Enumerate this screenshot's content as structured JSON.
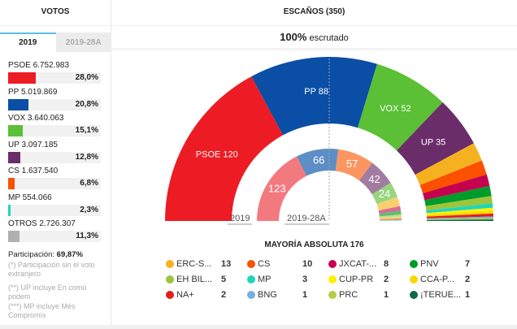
{
  "votos": {
    "title": "VOTOS",
    "tabs": [
      "2019",
      "2019-28A"
    ],
    "rows": [
      {
        "label": "PSOE 6.752.983",
        "pct": "28,0%",
        "value": 28.0,
        "color": "#ed1c24"
      },
      {
        "label": "PP 5.019.869",
        "pct": "20,8%",
        "value": 20.8,
        "color": "#0a4ea5"
      },
      {
        "label": "VOX 3.640.063",
        "pct": "15,1%",
        "value": 15.1,
        "color": "#5bc035"
      },
      {
        "label": "UP 3.097.185",
        "pct": "12,8%",
        "value": 12.8,
        "color": "#6b2d6a"
      },
      {
        "label": "CS 1.637.540",
        "pct": "6,8%",
        "value": 6.8,
        "color": "#fa5000"
      },
      {
        "label": "MP 554.066",
        "pct": "2,3%",
        "value": 2.3,
        "color": "#1fd6bc"
      },
      {
        "label": "OTROS 2.726.307",
        "pct": "11,3%",
        "value": 11.3,
        "color": "#b0b0b0"
      }
    ],
    "participacion_label": "Participación: ",
    "participacion_value": "69,87%",
    "notes": [
      "(*) Participación sin el voto extranjero",
      "(**) UP incluye En comú podem",
      "(***) MP incluye Més Compromís"
    ]
  },
  "header": {
    "title": "ESCAÑOS (350)",
    "scrut_pct": "100%",
    "scrut_text": " escrutado"
  },
  "chart_data": [
    {
      "type": "pie",
      "name": "2019",
      "label": "2019",
      "shape": "semicircle-donut",
      "slices": [
        {
          "party": "PSOE",
          "seats": 120,
          "color": "#ed1c24",
          "label": "PSOE 120"
        },
        {
          "party": "PP",
          "seats": 88,
          "color": "#0a4ea5",
          "label": "PP 88"
        },
        {
          "party": "VOX",
          "seats": 52,
          "color": "#5bc035",
          "label": "VOX 52"
        },
        {
          "party": "UP",
          "seats": 35,
          "color": "#6b2d6a",
          "label": "UP 35"
        },
        {
          "party": "ERC-S...",
          "seats": 13,
          "color": "#f5b11f"
        },
        {
          "party": "CS",
          "seats": 10,
          "color": "#fa5000"
        },
        {
          "party": "JXCAT-...",
          "seats": 8,
          "color": "#c5004f"
        },
        {
          "party": "PNV",
          "seats": 7,
          "color": "#009b2a"
        },
        {
          "party": "EH BIL...",
          "seats": 5,
          "color": "#9dc53c"
        },
        {
          "party": "MP",
          "seats": 3,
          "color": "#1fd6bc"
        },
        {
          "party": "CUP-PR",
          "seats": 2,
          "color": "#fff000"
        },
        {
          "party": "CCA-P...",
          "seats": 2,
          "color": "#ffd700"
        },
        {
          "party": "NA+",
          "seats": 2,
          "color": "#e31e1e"
        },
        {
          "party": "BNG",
          "seats": 1,
          "color": "#78aee0"
        },
        {
          "party": "PRC",
          "seats": 1,
          "color": "#b6cc44"
        },
        {
          "party": "¡TERUE...",
          "seats": 1,
          "color": "#0b6b45"
        }
      ]
    },
    {
      "type": "pie",
      "name": "2019-28A",
      "label": "2019-28A",
      "shape": "semicircle-donut",
      "slices": [
        {
          "party": "PSOE",
          "seats": 123,
          "color": "#f27a7f",
          "label": "123"
        },
        {
          "party": "PP",
          "seats": 66,
          "color": "#5c8ec5",
          "label": "66"
        },
        {
          "party": "CS",
          "seats": 57,
          "color": "#fc9660",
          "label": "57"
        },
        {
          "party": "UP",
          "seats": 42,
          "color": "#a17ca0",
          "label": "42"
        },
        {
          "party": "VOX",
          "seats": 24,
          "color": "#98d57e",
          "label": "24"
        },
        {
          "party": "ERC",
          "seats": 15,
          "color": "#f8d070"
        },
        {
          "party": "JXCAT",
          "seats": 7,
          "color": "#dc6a95"
        },
        {
          "party": "PNV",
          "seats": 6,
          "color": "#5cbf70"
        },
        {
          "party": "EH BIL",
          "seats": 4,
          "color": "#c5dc8a"
        },
        {
          "party": "CCA",
          "seats": 2,
          "color": "#ffe666"
        },
        {
          "party": "NA+",
          "seats": 2,
          "color": "#ee7070"
        },
        {
          "party": "PRC",
          "seats": 1,
          "color": "#d3e08f"
        },
        {
          "party": "MP",
          "seats": 1,
          "color": "#79e6d6"
        }
      ]
    }
  ],
  "mayoria": "MAYORÍA ABSOLUTA  176",
  "legend": [
    {
      "name": "ERC-S...",
      "seats": "13",
      "color": "#f5b11f"
    },
    {
      "name": "CS",
      "seats": "10",
      "color": "#fa5000"
    },
    {
      "name": "JXCAT-...",
      "seats": "8",
      "color": "#c5004f"
    },
    {
      "name": "PNV",
      "seats": "7",
      "color": "#009b2a"
    },
    {
      "name": "EH BIL...",
      "seats": "5",
      "color": "#9dc53c"
    },
    {
      "name": "MP",
      "seats": "3",
      "color": "#1fd6bc"
    },
    {
      "name": "CUP-PR",
      "seats": "2",
      "color": "#fff000"
    },
    {
      "name": "CCA-P...",
      "seats": "2",
      "color": "#ffd700"
    },
    {
      "name": "NA+",
      "seats": "2",
      "color": "#e31e1e"
    },
    {
      "name": "BNG",
      "seats": "1",
      "color": "#78aee0"
    },
    {
      "name": "PRC",
      "seats": "1",
      "color": "#b6cc44"
    },
    {
      "name": "¡TERUE...",
      "seats": "1",
      "color": "#0b6b45"
    }
  ]
}
